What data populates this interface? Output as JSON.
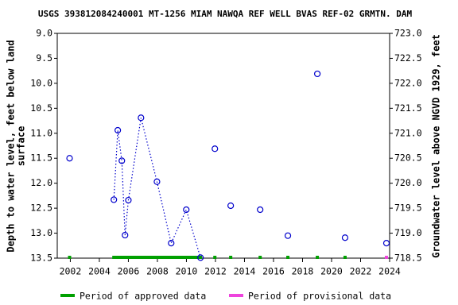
{
  "chart_data": {
    "type": "scatter",
    "title": "USGS 393812084240001 MT-1256 MIAM NAWQA REF WELL BVAS REF-02 GRMTN. DAM",
    "y_label": [
      "Depth to water level, feet below land",
      "surface"
    ],
    "y2_label": "Groundwater level above NGVD 1929, feet",
    "x": [
      2001.95,
      2005.0,
      2005.27,
      2005.55,
      2005.77,
      2006.0,
      2006.87,
      2007.97,
      2008.95,
      2009.99,
      2010.97,
      2011.96,
      2013.05,
      2015.08,
      2016.99,
      2019.02,
      2020.93,
      2023.78
    ],
    "values": [
      11.5,
      12.33,
      10.94,
      11.55,
      13.04,
      12.34,
      10.69,
      11.97,
      13.2,
      12.53,
      13.49,
      11.31,
      12.45,
      12.53,
      13.05,
      9.81,
      13.09,
      13.2
    ],
    "connected": [
      false,
      false,
      true,
      true,
      true,
      true,
      true,
      true,
      true,
      true,
      true,
      false,
      false,
      false,
      false,
      false,
      false,
      false
    ],
    "status": [
      "approved",
      "approved",
      "approved",
      "approved",
      "approved",
      "approved",
      "approved",
      "approved",
      "approved",
      "approved",
      "approved",
      "approved",
      "approved",
      "approved",
      "approved",
      "approved",
      "approved",
      "provisional"
    ],
    "color": "#0000cc",
    "legend": [
      {
        "name": "Period of approved data",
        "color": "#00a000",
        "status": "approved"
      },
      {
        "name": "Period of provisional data",
        "color": "#ee44dd",
        "status": "provisional"
      }
    ],
    "xlim": [
      2001.1,
      2024.0
    ],
    "xticks": [
      2002,
      2004,
      2006,
      2008,
      2010,
      2012,
      2014,
      2016,
      2018,
      2020,
      2022,
      2024
    ],
    "ylim": [
      9.0,
      13.5
    ],
    "yticks": [
      {
        "value": 9.0,
        "label": "9.0"
      },
      {
        "value": 9.5,
        "label": "9.5"
      },
      {
        "value": 10.0,
        "label": "10.0"
      },
      {
        "value": 10.5,
        "label": "10.5"
      },
      {
        "value": 11.0,
        "label": "11.0"
      },
      {
        "value": 11.5,
        "label": "11.5"
      },
      {
        "value": 12.0,
        "label": "12.0"
      },
      {
        "value": 12.5,
        "label": "12.5"
      },
      {
        "value": 13.0,
        "label": "13.0"
      },
      {
        "value": 13.5,
        "label": "13.5"
      }
    ],
    "y2lim": [
      723.0,
      718.5
    ],
    "y2ticks": [
      {
        "value": 723.0,
        "label": "723.0"
      },
      {
        "value": 722.5,
        "label": "722.5"
      },
      {
        "value": 722.0,
        "label": "722.0"
      },
      {
        "value": 721.5,
        "label": "721.5"
      },
      {
        "value": 721.0,
        "label": "721.0"
      },
      {
        "value": 720.5,
        "label": "720.5"
      },
      {
        "value": 720.0,
        "label": "720.0"
      },
      {
        "value": 719.5,
        "label": "719.5"
      },
      {
        "value": 719.0,
        "label": "719.0"
      },
      {
        "value": 718.5,
        "label": "718.5"
      }
    ]
  }
}
